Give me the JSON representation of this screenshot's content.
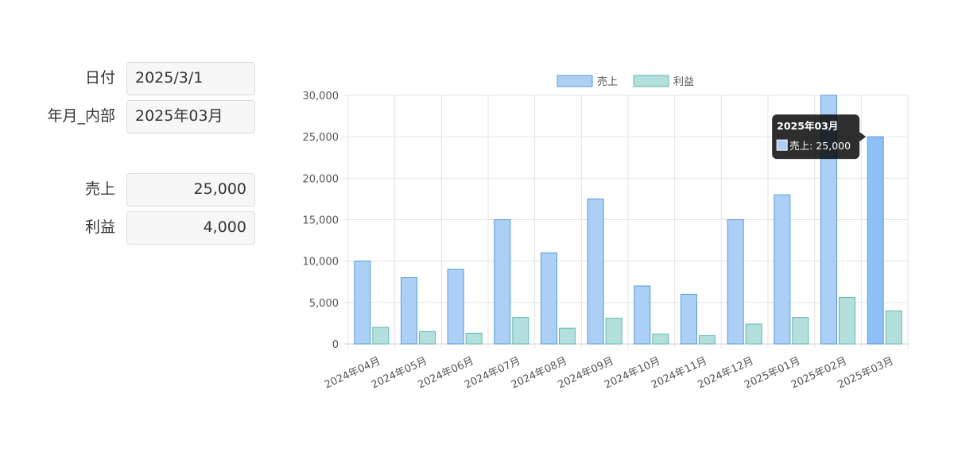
{
  "form": {
    "date_label": "日付",
    "date_value": "2025/3/1",
    "yearmonth_label": "年月_内部",
    "yearmonth_value": "2025年03月",
    "sales_label": "売上",
    "sales_value": "25,000",
    "profit_label": "利益",
    "profit_value": "4,000"
  },
  "chart_data": {
    "type": "bar",
    "categories": [
      "2024年04月",
      "2024年05月",
      "2024年06月",
      "2024年07月",
      "2024年08月",
      "2024年09月",
      "2024年10月",
      "2024年11月",
      "2024年12月",
      "2025年01月",
      "2025年02月",
      "2025年03月"
    ],
    "series": [
      {
        "name": "売上",
        "values": [
          10000,
          8000,
          9000,
          15000,
          11000,
          17500,
          7000,
          6000,
          15000,
          18000,
          30000,
          25000
        ],
        "color": "#abcff5",
        "border": "#5b9bd5"
      },
      {
        "name": "利益",
        "values": [
          2000,
          1500,
          1300,
          3200,
          1900,
          3100,
          1200,
          1000,
          2400,
          3200,
          5600,
          4000
        ],
        "color": "#b3dfdd",
        "border": "#62b6b1"
      }
    ],
    "ylim": [
      0,
      30000
    ],
    "yticks": [
      "0",
      "5,000",
      "10,000",
      "15,000",
      "20,000",
      "25,000",
      "30,000"
    ],
    "grid": true,
    "legend_position": "top",
    "tooltip": {
      "title": "2025年03月",
      "label": "売上: 25,000",
      "category_index": 11,
      "series_index": 0
    }
  }
}
